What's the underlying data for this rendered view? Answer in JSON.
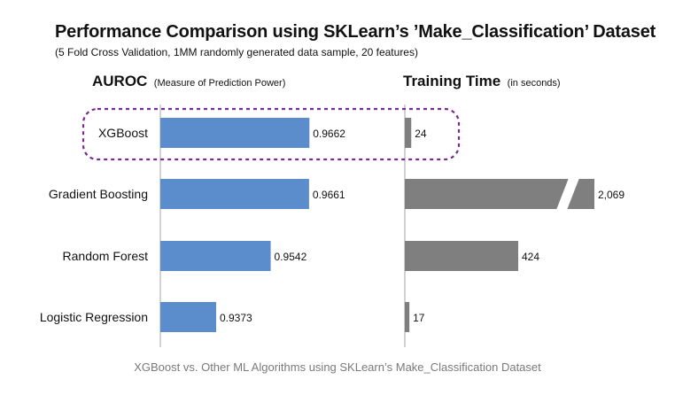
{
  "chart_data": [
    {
      "type": "bar",
      "orientation": "horizontal",
      "title": "AUROC",
      "title_note": "(Measure of Prediction Power)",
      "categories": [
        "XGBoost",
        "Gradient Boosting",
        "Random Forest",
        "Logistic Regression"
      ],
      "values": [
        0.9662,
        0.9661,
        0.9542,
        0.9373
      ],
      "value_labels": [
        "0.9662",
        "0.9661",
        "0.9542",
        "0.9373"
      ],
      "xlim": [
        0.92,
        0.9675
      ],
      "bar_color": "#5b8ccc",
      "grid": false
    },
    {
      "type": "bar",
      "orientation": "horizontal",
      "title": "Training Time",
      "title_note": "(in seconds)",
      "categories": [
        "XGBoost",
        "Gradient Boosting",
        "Random Forest",
        "Logistic Regression"
      ],
      "values": [
        24,
        2069,
        424,
        17
      ],
      "value_labels": [
        "24",
        "2,069",
        "424",
        "17"
      ],
      "broken_axis_bar": "Gradient Boosting",
      "bar_color": "#7f7f7f",
      "grid": false
    }
  ],
  "header": {
    "title": "Performance Comparison using SKLearn’s ’Make_Classification’ Dataset",
    "subtitle": "(5 Fold Cross Validation, 1MM randomly generated data sample, 20 features)"
  },
  "caption": "XGBoost vs. Other ML Algorithms using SKLearn’s Make_Classification Dataset",
  "highlight": {
    "category": "XGBoost",
    "style": "dashed-rounded-box",
    "color": "#7a2a8c"
  }
}
